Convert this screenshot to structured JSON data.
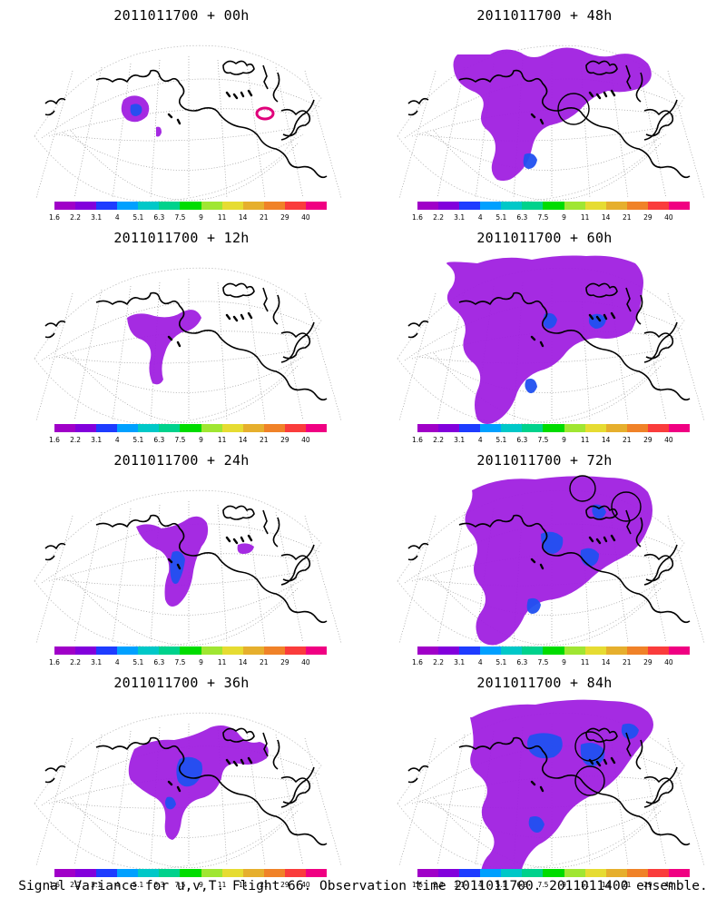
{
  "panels": [
    {
      "title": "2011011700 + 00h",
      "blobs": [
        {
          "kind": "small-west"
        },
        {
          "kind": "east-ring"
        }
      ],
      "circles": []
    },
    {
      "title": "2011011700 + 48h",
      "blobs": [
        {
          "kind": "mid-48"
        }
      ],
      "circles": [
        1
      ]
    },
    {
      "title": "2011011700 + 12h",
      "blobs": [
        {
          "kind": "mid-12"
        }
      ],
      "circles": []
    },
    {
      "title": "2011011700 + 60h",
      "blobs": [
        {
          "kind": "large-60"
        }
      ],
      "circles": []
    },
    {
      "title": "2011011700 + 24h",
      "blobs": [
        {
          "kind": "mid-24"
        }
      ],
      "circles": []
    },
    {
      "title": "2011011700 + 72h",
      "blobs": [
        {
          "kind": "large-72"
        }
      ],
      "circles": [
        1,
        2
      ]
    },
    {
      "title": "2011011700 + 36h",
      "blobs": [
        {
          "kind": "mid-36"
        }
      ],
      "circles": []
    },
    {
      "title": "2011011700 + 84h",
      "blobs": [
        {
          "kind": "large-84"
        }
      ],
      "circles": [
        1,
        2
      ]
    }
  ],
  "legend": {
    "ticks": [
      "1.6",
      "2.2",
      "3.1",
      "4",
      "5.1",
      "6.3",
      "7.5",
      "9",
      "11",
      "14",
      "21",
      "29",
      "40"
    ],
    "colors": [
      "#a000c8",
      "#8200dc",
      "#1e3cff",
      "#00a0ff",
      "#00c8c8",
      "#00d28c",
      "#00dc00",
      "#a0e632",
      "#e6dc32",
      "#e6af2d",
      "#f08228",
      "#fa3c3c",
      "#f00082"
    ]
  },
  "footer": {
    "caption": "Signal Variance for u,v,T. Flight 66. Observation time 2011011700. 2011011400 ensemble."
  },
  "colors": {
    "purple": "#a020e0",
    "blue": "#2050f0",
    "cyan": "#20a0f0",
    "pink": "#e0007a",
    "coast": "#000000",
    "grid": "#9a9a9a"
  }
}
